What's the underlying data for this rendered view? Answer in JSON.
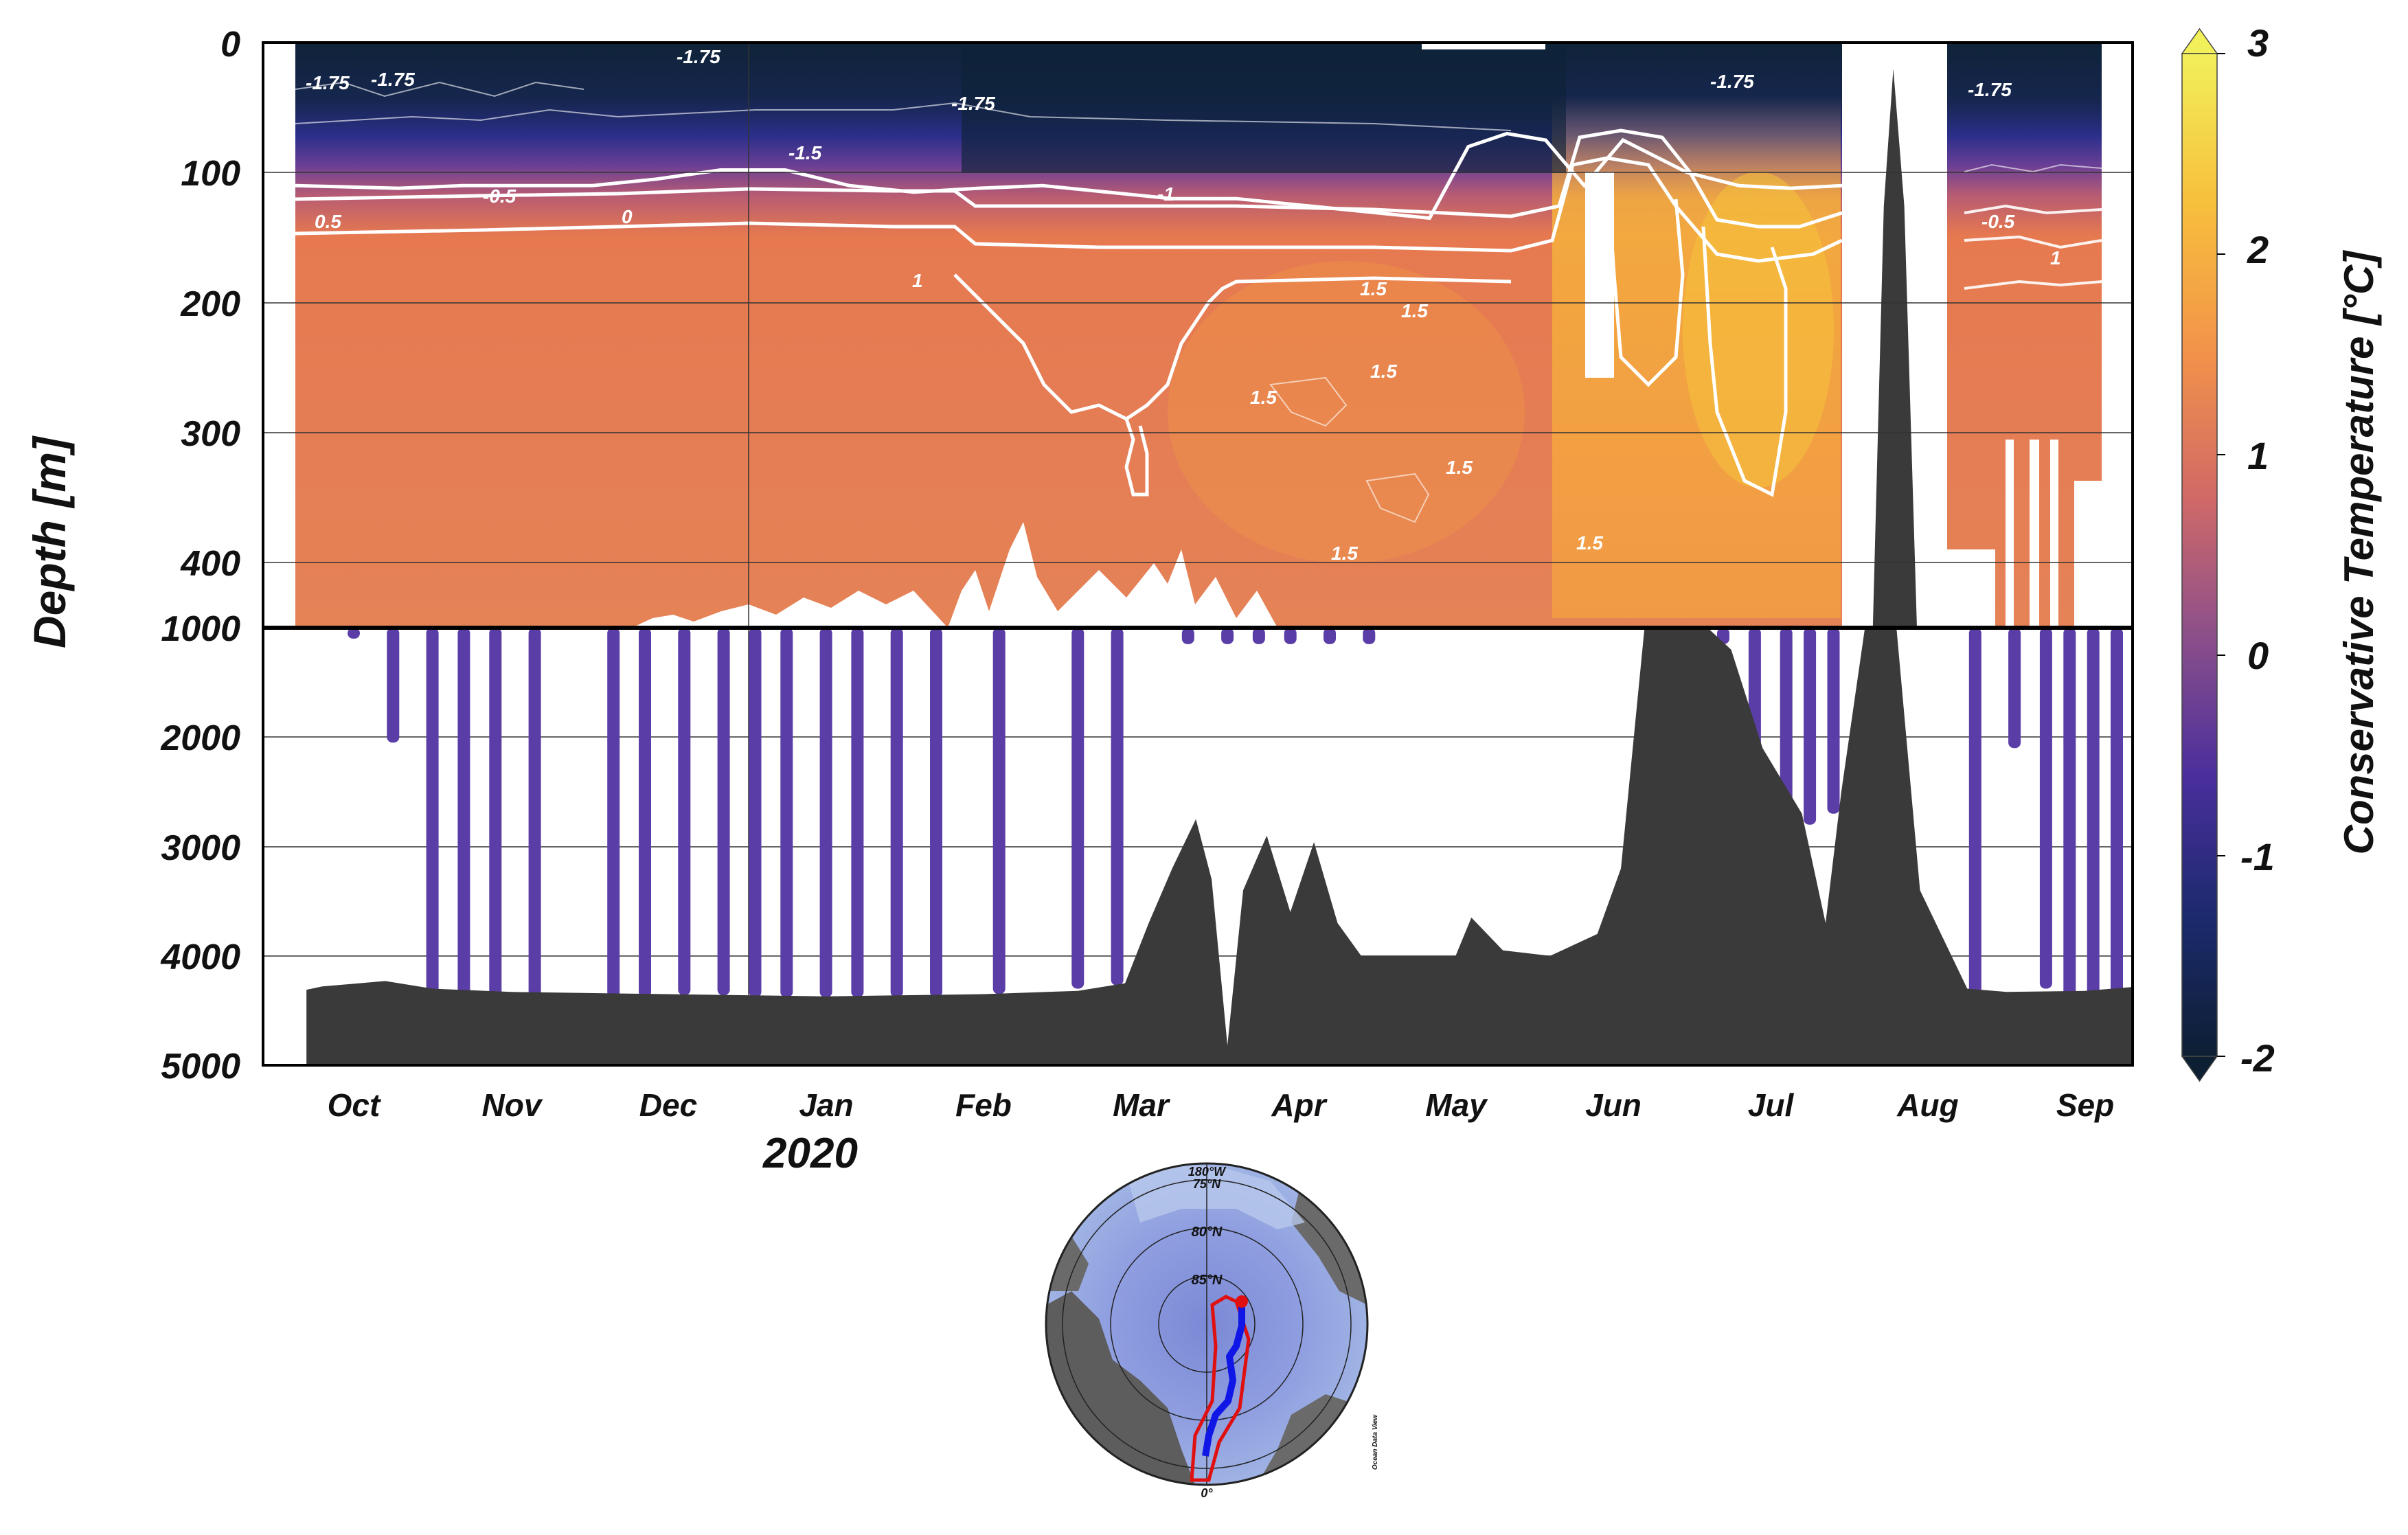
{
  "chart_data": {
    "type": "heatmap",
    "title": "",
    "xlabel": "",
    "year_label": "2020",
    "ylabel": "Depth [m]",
    "colorbar_label": "Conservative Temperature [°C]",
    "x_tick_labels": [
      "Oct",
      "Nov",
      "Dec",
      "Jan",
      "Feb",
      "Mar",
      "Apr",
      "May",
      "Jun",
      "Jul",
      "Aug",
      "Sep"
    ],
    "upper_panel": {
      "ylim": [
        0,
        450
      ],
      "y_tick_labels": [
        "0",
        "100",
        "200",
        "300",
        "400"
      ]
    },
    "lower_panel": {
      "ylim": [
        1000,
        5000
      ],
      "y_tick_labels": [
        "1000",
        "2000",
        "3000",
        "4000",
        "5000"
      ]
    },
    "colorbar": {
      "range": [
        -2,
        3
      ],
      "tick_labels": [
        "3",
        "2",
        "1",
        "0",
        "-1",
        "-2"
      ],
      "colors": [
        "#0d1f33",
        "#1c2a6e",
        "#4a2f9c",
        "#8c4f8a",
        "#d26a66",
        "#f2924a",
        "#f7bf3c",
        "#f2f05a"
      ]
    },
    "contour_labels": [
      "-1.75",
      "-1.75",
      "-1.75",
      "-1.75",
      "-1.75",
      "-1.75",
      "-1.5",
      "-1",
      "-0.5",
      "-0.5",
      "0.5",
      "0",
      "1",
      "1",
      "1.5",
      "1.5",
      "1.5",
      "1.5",
      "1.5",
      "1.5",
      "1.5"
    ],
    "profile_months": [
      1.0,
      1.25,
      1.5,
      1.7,
      1.9,
      2.15,
      2.65,
      2.85,
      3.1,
      3.35,
      3.55,
      3.75,
      4.0,
      4.2,
      4.45,
      4.7,
      5.1,
      5.6,
      5.85,
      6.3,
      6.55,
      6.75,
      6.95,
      7.2,
      7.45,
      9.7,
      9.9,
      10.1,
      10.25,
      10.4,
      11.3,
      11.55,
      11.75,
      11.9,
      12.05,
      12.2
    ],
    "profile_max_depth_m": [
      1100,
      2050,
      4380,
      4380,
      4380,
      4380,
      4380,
      4380,
      4360,
      4360,
      4380,
      4380,
      4380,
      4380,
      4380,
      4380,
      4350,
      4300,
      4270,
      1150,
      1150,
      1150,
      1150,
      1150,
      1150,
      1150,
      2500,
      2600,
      2800,
      2700,
      4380,
      2100,
      4300,
      4380,
      4380,
      4380
    ],
    "bathymetry_depth_m": [
      [
        0.7,
        4310
      ],
      [
        0.8,
        4280
      ],
      [
        1.2,
        4230
      ],
      [
        1.5,
        4300
      ],
      [
        2.0,
        4330
      ],
      [
        3.0,
        4350
      ],
      [
        4.0,
        4370
      ],
      [
        5.0,
        4350
      ],
      [
        5.6,
        4320
      ],
      [
        5.9,
        4250
      ],
      [
        6.05,
        3700
      ],
      [
        6.2,
        3200
      ],
      [
        6.35,
        2750
      ],
      [
        6.45,
        3300
      ],
      [
        6.55,
        4820
      ],
      [
        6.65,
        3400
      ],
      [
        6.8,
        2900
      ],
      [
        6.95,
        3600
      ],
      [
        7.1,
        2960
      ],
      [
        7.25,
        3700
      ],
      [
        7.4,
        4000
      ],
      [
        8.0,
        4000
      ],
      [
        8.1,
        3650
      ],
      [
        8.3,
        3950
      ],
      [
        8.6,
        4000
      ],
      [
        8.9,
        3800
      ],
      [
        9.05,
        3200
      ],
      [
        9.2,
        1000
      ],
      [
        9.6,
        1000
      ],
      [
        9.75,
        1200
      ],
      [
        9.95,
        2100
      ],
      [
        10.2,
        2700
      ],
      [
        10.35,
        3700
      ],
      [
        10.45,
        2500
      ],
      [
        10.6,
        1000
      ],
      [
        10.8,
        1000
      ],
      [
        10.95,
        3400
      ],
      [
        11.1,
        3850
      ],
      [
        11.25,
        4300
      ],
      [
        11.5,
        4330
      ],
      [
        12.0,
        4320
      ],
      [
        12.6,
        4250
      ]
    ],
    "mixed_layer_depth_m": [
      [
        0.2,
        110
      ],
      [
        1.0,
        112
      ],
      [
        1.5,
        110
      ],
      [
        2.0,
        110
      ],
      [
        2.5,
        110
      ],
      [
        3.0,
        105
      ],
      [
        3.5,
        98
      ],
      [
        4.0,
        98
      ],
      [
        4.5,
        110
      ],
      [
        5.0,
        115
      ],
      [
        5.5,
        112
      ],
      [
        6.0,
        110
      ],
      [
        6.5,
        115
      ],
      [
        7.0,
        120
      ],
      [
        7.5,
        120
      ],
      [
        8.0,
        125
      ],
      [
        8.5,
        130
      ],
      [
        9.0,
        135
      ],
      [
        9.3,
        80
      ],
      [
        9.6,
        70
      ],
      [
        9.9,
        75
      ],
      [
        10.2,
        110
      ],
      [
        10.5,
        75
      ],
      [
        10.8,
        90
      ],
      [
        11.0,
        100
      ],
      [
        11.4,
        110
      ],
      [
        11.8,
        112
      ],
      [
        12.2,
        110
      ]
    ]
  },
  "inset_map": {
    "lat_labels": [
      "75°N",
      "80°N",
      "85°N"
    ],
    "top_lon_label": "180°W",
    "bottom_lon_label": "0°",
    "credit": "Ocean Data View"
  }
}
